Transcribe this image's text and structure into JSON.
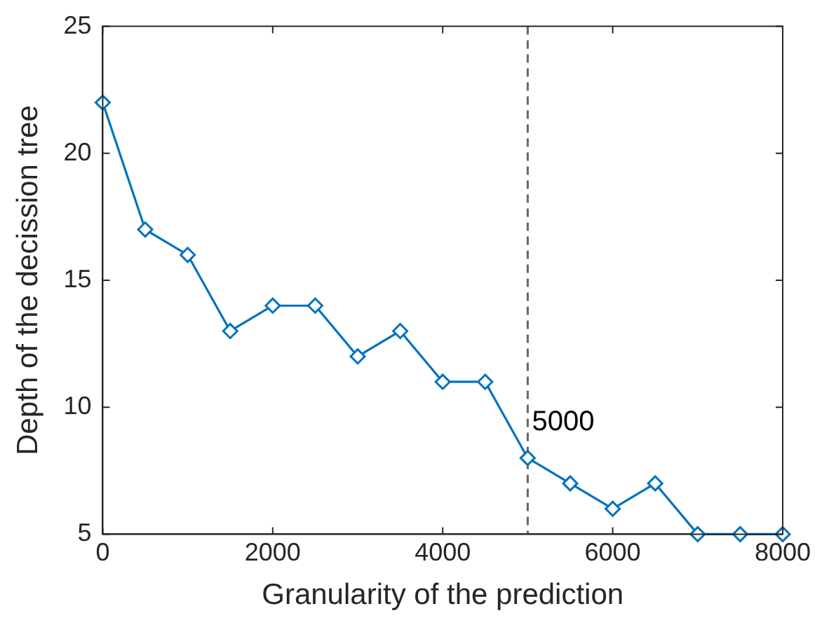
{
  "chart_data": {
    "type": "line",
    "xlabel": "Granularity of the prediction",
    "ylabel": "Depth of the decission tree",
    "x": [
      0,
      500,
      1000,
      1500,
      2000,
      2500,
      3000,
      3500,
      4000,
      4500,
      5000,
      5500,
      6000,
      6500,
      7000,
      7500,
      8000
    ],
    "series": [
      {
        "color": "#0072bd",
        "values": [
          22,
          17,
          16,
          13,
          14,
          14,
          12,
          13,
          11,
          11,
          8,
          7,
          6,
          7,
          5,
          5,
          5
        ]
      }
    ],
    "xlim": [
      0,
      8000
    ],
    "xticks": [
      0,
      2000,
      4000,
      6000,
      8000
    ],
    "ylim": [
      5,
      25
    ],
    "yticks": [
      5,
      10,
      15,
      20,
      25
    ],
    "ref_lines": [
      {
        "axis": "x",
        "value": 5000,
        "label": "5000",
        "color": "#666666",
        "line_style": "dashed"
      }
    ],
    "grid": false,
    "legend": false,
    "marker": "diamond",
    "line_style": "solid"
  }
}
